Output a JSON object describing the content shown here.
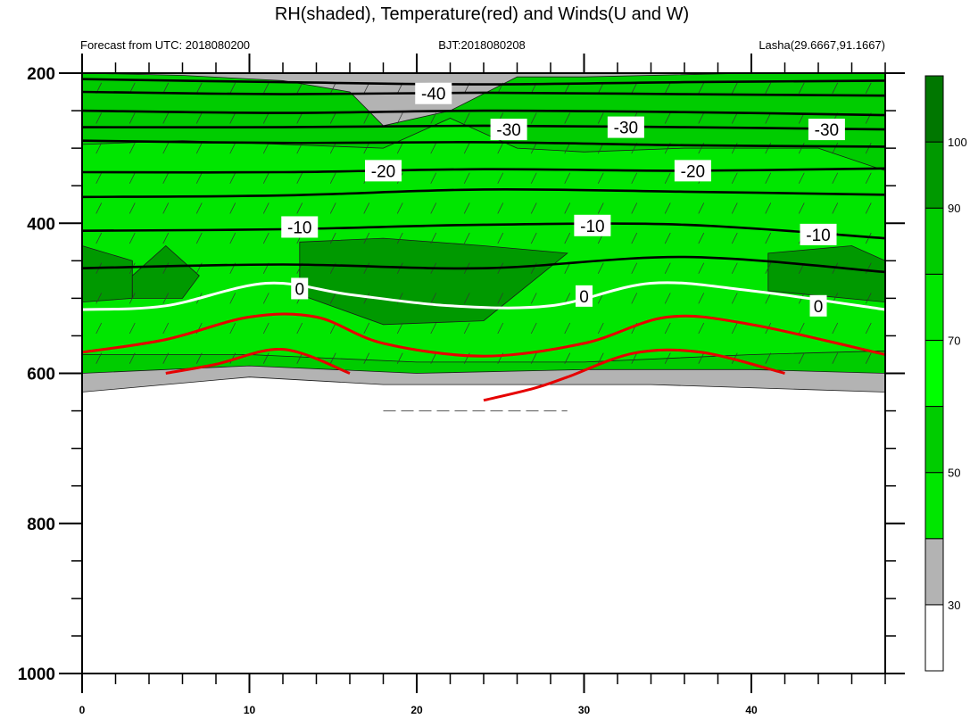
{
  "chart_data": {
    "type": "contour",
    "title": "RH(shaded), Temperature(red) and Winds(U and W)",
    "subtitle_left": "Forecast from UTC: 2018080200",
    "subtitle_center": "BJT:2018080208",
    "subtitle_right": "Lasha(29.6667,91.1667)",
    "x_range": [
      0,
      48
    ],
    "y_range": [
      200,
      1000
    ],
    "x_ticks": [
      "0",
      "10",
      "20",
      "30",
      "40"
    ],
    "y_ticks": [
      "200",
      "400",
      "600",
      "800",
      "1000"
    ],
    "colorbar": {
      "ticks": [
        "30",
        "50",
        "70",
        "90",
        "100"
      ],
      "levels": [
        0,
        30,
        40,
        50,
        60,
        70,
        80,
        90,
        100,
        110
      ],
      "colors": [
        "#ffffff",
        "#b3b3b3",
        "#00e600",
        "#00cc00",
        "#00ff00",
        "#00e600",
        "#00cc00",
        "#009900",
        "#007700"
      ]
    },
    "temperature_contours_labels": {
      "-40": [
        {
          "x": 21,
          "p": 227
        }
      ],
      "-30": [
        {
          "x": 25.5,
          "p": 275
        },
        {
          "x": 32.5,
          "p": 272
        },
        {
          "x": 44.5,
          "p": 275
        }
      ],
      "-20": [
        {
          "x": 18,
          "p": 330
        },
        {
          "x": 36.5,
          "p": 330
        }
      ],
      "-10": [
        {
          "x": 13,
          "p": 405
        },
        {
          "x": 30.5,
          "p": 403
        },
        {
          "x": 44,
          "p": 415
        }
      ],
      "0": [
        {
          "x": 13,
          "p": 487
        },
        {
          "x": 30,
          "p": 497
        },
        {
          "x": 44,
          "p": 510
        }
      ]
    },
    "black_isotherms": [
      {
        "level": -40,
        "points": [
          [
            0,
            208
          ],
          [
            12,
            212
          ],
          [
            24,
            215
          ],
          [
            36,
            212
          ],
          [
            48,
            210
          ]
        ]
      },
      {
        "level": -40,
        "points": [
          [
            0,
            225
          ],
          [
            12,
            228
          ],
          [
            24,
            226
          ],
          [
            36,
            228
          ],
          [
            48,
            230
          ]
        ]
      },
      {
        "level": -30,
        "points": [
          [
            0,
            250
          ],
          [
            12,
            253
          ],
          [
            24,
            250
          ],
          [
            36,
            252
          ],
          [
            48,
            256
          ]
        ]
      },
      {
        "level": -30,
        "points": [
          [
            0,
            272
          ],
          [
            12,
            272
          ],
          [
            24,
            270
          ],
          [
            36,
            272
          ],
          [
            48,
            275
          ]
        ]
      },
      {
        "level": -30,
        "points": [
          [
            0,
            290
          ],
          [
            12,
            293
          ],
          [
            24,
            292
          ],
          [
            36,
            296
          ],
          [
            48,
            298
          ]
        ]
      },
      {
        "level": -20,
        "points": [
          [
            0,
            332
          ],
          [
            12,
            332
          ],
          [
            24,
            328
          ],
          [
            36,
            330
          ],
          [
            48,
            327
          ]
        ]
      },
      {
        "level": -20,
        "points": [
          [
            0,
            365
          ],
          [
            12,
            363
          ],
          [
            24,
            355
          ],
          [
            36,
            358
          ],
          [
            48,
            362
          ]
        ]
      },
      {
        "level": -10,
        "points": [
          [
            0,
            410
          ],
          [
            12,
            408
          ],
          [
            24,
            402
          ],
          [
            36,
            402
          ],
          [
            48,
            420
          ]
        ]
      },
      {
        "level": -10,
        "points": [
          [
            0,
            460
          ],
          [
            12,
            455
          ],
          [
            24,
            460
          ],
          [
            36,
            445
          ],
          [
            48,
            465
          ]
        ]
      }
    ],
    "freezing_line": {
      "level": 0,
      "points": [
        [
          0,
          515
        ],
        [
          5,
          510
        ],
        [
          11,
          480
        ],
        [
          16,
          495
        ],
        [
          22,
          510
        ],
        [
          28,
          510
        ],
        [
          34,
          480
        ],
        [
          40,
          490
        ],
        [
          48,
          515
        ]
      ]
    },
    "red_isotherms": [
      {
        "points": [
          [
            0,
            572
          ],
          [
            5,
            555
          ],
          [
            10,
            525
          ],
          [
            14,
            525
          ],
          [
            18,
            560
          ],
          [
            24,
            577
          ],
          [
            30,
            560
          ],
          [
            35,
            525
          ],
          [
            40,
            535
          ],
          [
            48,
            575
          ]
        ]
      },
      {
        "points": [
          [
            5,
            600
          ],
          [
            8,
            588
          ],
          [
            12,
            568
          ],
          [
            16,
            600
          ]
        ]
      },
      {
        "points": [
          [
            24,
            636
          ],
          [
            27,
            620
          ],
          [
            29,
            605
          ],
          [
            33,
            573
          ],
          [
            37,
            572
          ],
          [
            42,
            600
          ]
        ]
      }
    ],
    "rh_regions": [
      {
        "rh": 30,
        "points": [
          [
            0,
            200
          ],
          [
            48,
            200
          ],
          [
            48,
            625
          ],
          [
            34,
            615
          ],
          [
            25,
            615
          ],
          [
            18,
            615
          ],
          [
            10,
            605
          ],
          [
            0,
            625
          ]
        ]
      },
      {
        "rh": 50,
        "points": [
          [
            0,
            200
          ],
          [
            6,
            203
          ],
          [
            12,
            210
          ],
          [
            16,
            225
          ],
          [
            18,
            270
          ],
          [
            22,
            250
          ],
          [
            26,
            205
          ],
          [
            30,
            205
          ],
          [
            40,
            200
          ],
          [
            48,
            200
          ],
          [
            48,
            600
          ],
          [
            40,
            595
          ],
          [
            30,
            595
          ],
          [
            20,
            600
          ],
          [
            10,
            590
          ],
          [
            0,
            600
          ]
        ]
      },
      {
        "rh": 70,
        "points": [
          [
            0,
            295
          ],
          [
            6,
            290
          ],
          [
            12,
            295
          ],
          [
            18,
            300
          ],
          [
            22,
            260
          ],
          [
            26,
            300
          ],
          [
            30,
            305
          ],
          [
            36,
            300
          ],
          [
            40,
            300
          ],
          [
            44,
            300
          ],
          [
            48,
            330
          ],
          [
            48,
            570
          ],
          [
            40,
            575
          ],
          [
            30,
            585
          ],
          [
            20,
            585
          ],
          [
            10,
            575
          ],
          [
            0,
            575
          ]
        ]
      },
      {
        "rh": 90,
        "points": [
          [
            13,
            425
          ],
          [
            18,
            420
          ],
          [
            24,
            430
          ],
          [
            29,
            440
          ],
          [
            24,
            530
          ],
          [
            18,
            535
          ],
          [
            13,
            495
          ]
        ]
      },
      {
        "rh": 90,
        "points": [
          [
            41,
            440
          ],
          [
            46,
            430
          ],
          [
            48,
            450
          ],
          [
            48,
            505
          ],
          [
            41,
            490
          ]
        ]
      },
      {
        "rh": 90,
        "points": [
          [
            0,
            430
          ],
          [
            3,
            450
          ],
          [
            3,
            500
          ],
          [
            0,
            505
          ]
        ]
      },
      {
        "rh": 90,
        "points": [
          [
            3,
            470
          ],
          [
            5,
            430
          ],
          [
            7,
            470
          ],
          [
            6,
            500
          ],
          [
            3,
            500
          ]
        ]
      }
    ]
  }
}
